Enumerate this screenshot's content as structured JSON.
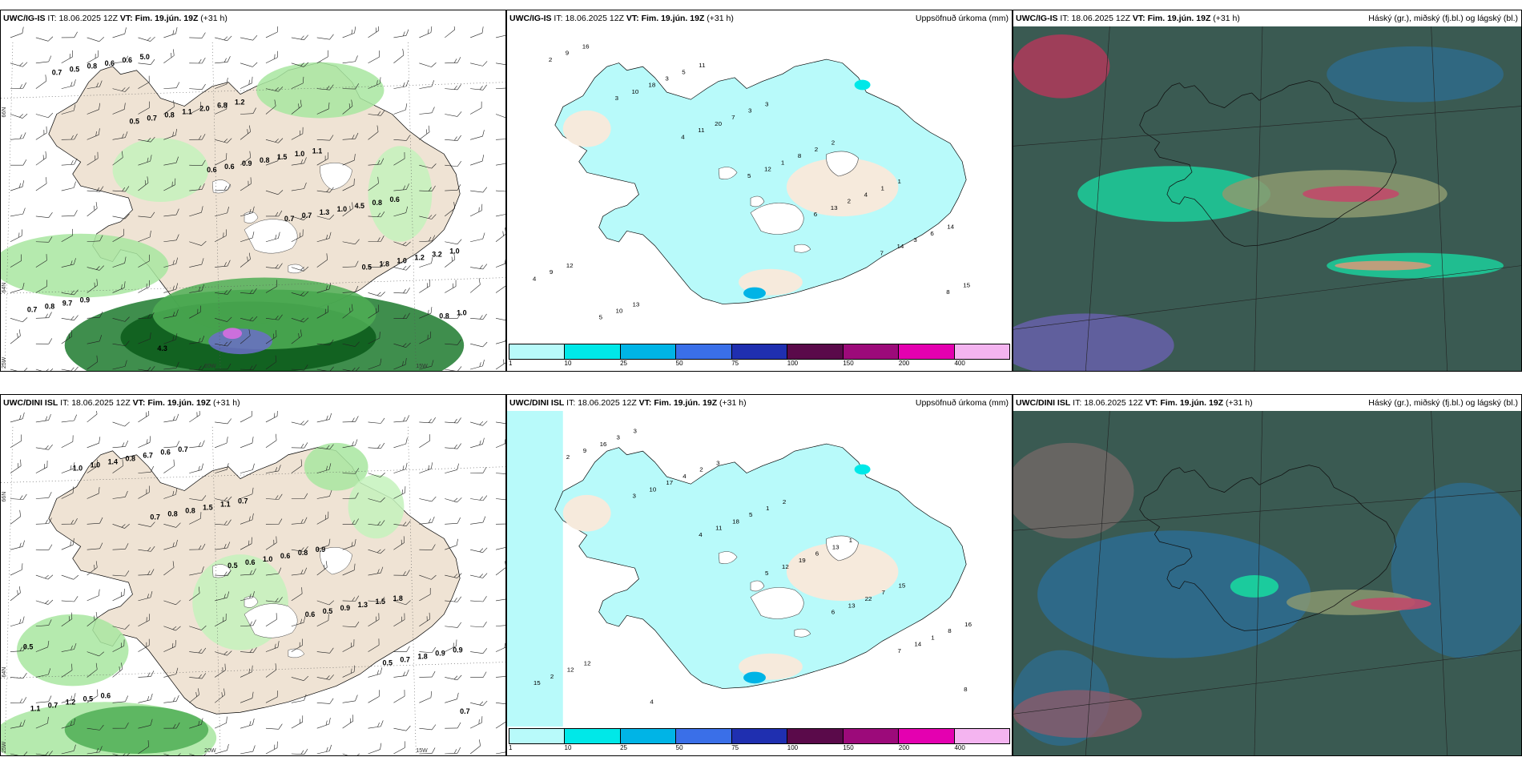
{
  "panels": [
    {
      "id": "p1",
      "model": "UWC/IG-IS",
      "it_label": "IT:",
      "it_value": "18.06.2025 12Z",
      "vt_label": "VT:",
      "vt_value": "Fim. 19.jún. 19Z",
      "lead": "(+31 h)",
      "right_title": ""
    },
    {
      "id": "p2",
      "model": "UWC/IG-IS",
      "it_label": "IT:",
      "it_value": "18.06.2025 12Z",
      "vt_label": "VT:",
      "vt_value": "Fim. 19.jún. 19Z",
      "lead": "(+31 h)",
      "right_title": "Uppsöfnuð úrkoma (mm)"
    },
    {
      "id": "p3",
      "model": "UWC/IG-IS",
      "it_label": "IT:",
      "it_value": "18.06.2025 12Z",
      "vt_label": "VT:",
      "vt_value": "Fim. 19.jún. 19Z",
      "lead": "(+31 h)",
      "right_title": "Háský (gr.), miðský (fj.bl.) og lágský (bl.)"
    },
    {
      "id": "p4",
      "model": "UWC/DINI ISL",
      "it_label": "IT:",
      "it_value": "18.06.2025 12Z",
      "vt_label": "VT:",
      "vt_value": "Fim. 19.jún. 19Z",
      "lead": "(+31 h)",
      "right_title": ""
    },
    {
      "id": "p5",
      "model": "UWC/DINI ISL",
      "it_label": "IT:",
      "it_value": "18.06.2025 12Z",
      "vt_label": "VT:",
      "vt_value": "Fim. 19.jún. 19Z",
      "lead": "(+31 h)",
      "right_title": "Uppsöfnuð úrkoma (mm)"
    },
    {
      "id": "p6",
      "model": "UWC/DINI ISL",
      "it_label": "IT:",
      "it_value": "18.06.2025 12Z",
      "vt_label": "VT:",
      "vt_value": "Fim. 19.jún. 19Z",
      "lead": "(+31 h)",
      "right_title": "Háský (gr.), miðský (fj.bl.) og lágský (bl.)"
    }
  ],
  "grid_labels": {
    "lat_66": "66N",
    "lat_64": "64N",
    "lat_20w": "20W",
    "lat_25w": "25W",
    "lon_15w": "15W"
  },
  "precip_colorbar": {
    "colors": [
      "#b8fafa",
      "#00e8e8",
      "#00b4e6",
      "#3a6fe8",
      "#1f2fb0",
      "#5a0a4a",
      "#9c0a7a",
      "#e400b0",
      "#f4b4f0"
    ],
    "ticks": [
      "1",
      "10",
      "25",
      "50",
      "75",
      "100",
      "150",
      "200",
      "400"
    ]
  },
  "precip_1h_labels_p1": [
    "0.7",
    "0.5",
    "0.6",
    "0.7",
    "0.5",
    "0.8",
    "0.5",
    "0.7",
    "0.6",
    "0.7",
    "1.8",
    "1.0",
    "0.8",
    "0.8",
    "0.9",
    "1.3",
    "1.0",
    "0.7",
    "0.6",
    "1.1",
    "0.8",
    "1.0",
    "1.2",
    "0.8",
    "0.6",
    "2.0",
    "1.5",
    "4.5",
    "3.2",
    "9.7",
    "5.0",
    "6.8",
    "1.0",
    "0.8",
    "1.0",
    "0.9",
    "4.3",
    "1.2",
    "1.1",
    "0.6"
  ],
  "precip_1h_labels_p4": [
    "1.0",
    "0.7",
    "0.5",
    "0.6",
    "0.5",
    "0.7",
    "1.0",
    "0.8",
    "0.6",
    "0.5",
    "0.7",
    "1.1",
    "1.4",
    "0.8",
    "1.0",
    "0.9",
    "1.8",
    "0.7",
    "0.8",
    "1.5",
    "0.6",
    "1.3",
    "0.9",
    "1.2",
    "6.7",
    "1.1",
    "0.8",
    "1.5",
    "0.9",
    "0.5",
    "0.6",
    "0.7",
    "0.9",
    "1.8",
    "0.5",
    "0.6",
    "0.7"
  ],
  "accum_labels_p2": [
    "2",
    "3",
    "4",
    "5",
    "6",
    "7",
    "8",
    "9",
    "10",
    "11",
    "12",
    "13",
    "14",
    "15",
    "16",
    "18",
    "20",
    "1",
    "2",
    "3",
    "4",
    "5",
    "3",
    "7",
    "8",
    "4",
    "6",
    "9",
    "10",
    "5",
    "3",
    "2",
    "1",
    "14",
    "12",
    "13",
    "11",
    "3",
    "2",
    "1"
  ],
  "accum_labels_p5": [
    "2",
    "3",
    "4",
    "5",
    "6",
    "7",
    "8",
    "9",
    "10",
    "11",
    "12",
    "13",
    "14",
    "15",
    "16",
    "17",
    "18",
    "19",
    "22",
    "1",
    "2",
    "3",
    "4",
    "5",
    "6",
    "7",
    "8",
    "12",
    "3",
    "2",
    "1",
    "13",
    "15",
    "16",
    "12",
    "4",
    "3",
    "2",
    "1"
  ],
  "icons": {
    "wind_barb": "wind-barb-icon"
  }
}
